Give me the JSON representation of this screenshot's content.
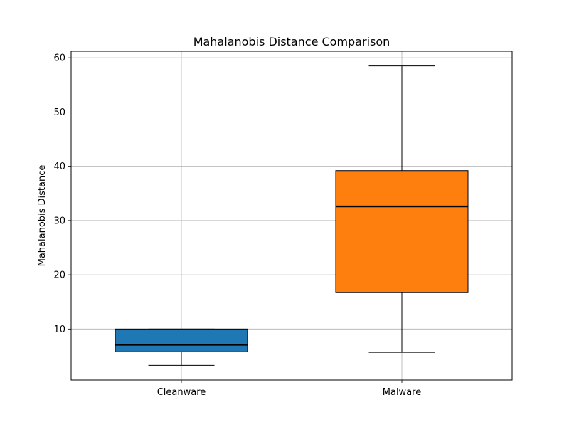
{
  "chart_data": {
    "type": "box",
    "title": "Mahalanobis Distance Comparison",
    "xlabel": "",
    "ylabel": "Mahalanobis Distance",
    "categories": [
      "Cleanware",
      "Malware"
    ],
    "ylim": [
      0.6,
      61.2
    ],
    "yticks": [
      10,
      20,
      30,
      40,
      50,
      60
    ],
    "grid": true,
    "boxes": [
      {
        "label": "Cleanware",
        "whisker_low": 3.3,
        "q1": 5.8,
        "median": 7.1,
        "q3": 10.0,
        "whisker_high": 10.0,
        "color": "#1f77b4"
      },
      {
        "label": "Malware",
        "whisker_low": 5.7,
        "q1": 16.7,
        "median": 32.6,
        "q3": 39.2,
        "whisker_high": 58.5,
        "color": "#ff7f0e"
      }
    ]
  }
}
